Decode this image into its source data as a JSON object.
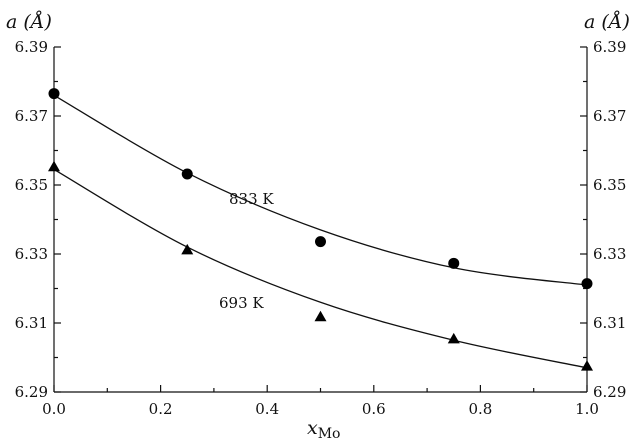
{
  "chart_data": {
    "type": "scatter",
    "title": "",
    "xlabel": "x",
    "xlabel_subscript": "Mo",
    "ylabel_left": "a (Å)",
    "ylabel_right": "a (Å)",
    "xlim": [
      0.0,
      1.0
    ],
    "ylim": [
      6.29,
      6.39
    ],
    "x_ticks": [
      "0.0",
      "0.2",
      "0.4",
      "0.6",
      "0.8",
      "1.0"
    ],
    "y_ticks": [
      "6.29",
      "6.31",
      "6.33",
      "6.35",
      "6.37",
      "6.39"
    ],
    "series": [
      {
        "name": "833 K",
        "marker": "circle",
        "x": [
          0.0,
          0.25,
          0.5,
          0.75,
          1.0
        ],
        "y": [
          6.3765,
          6.3532,
          6.3336,
          6.3273,
          6.3214
        ],
        "fit_y": [
          6.376,
          6.3535,
          6.337,
          6.326,
          6.321
        ]
      },
      {
        "name": "693 K",
        "marker": "triangle",
        "x": [
          0.0,
          0.25,
          0.5,
          0.75,
          1.0
        ],
        "y": [
          6.3553,
          6.3312,
          6.3118,
          6.3054,
          6.2975
        ],
        "fit_y": [
          6.3545,
          6.332,
          6.316,
          6.305,
          6.297
        ]
      }
    ],
    "grid": false,
    "legend": "none"
  }
}
